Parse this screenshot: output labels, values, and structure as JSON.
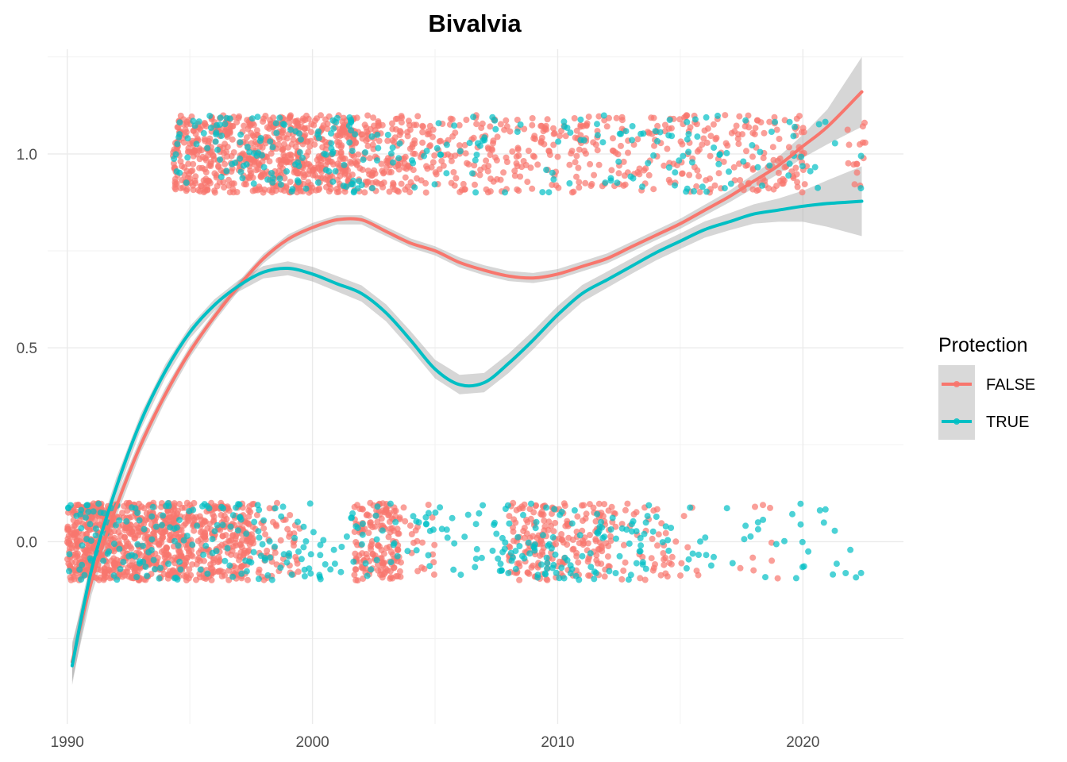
{
  "chart_data": {
    "type": "scatter",
    "title": "Bivalvia",
    "xlabel": "",
    "ylabel": "",
    "xlim": [
      1989.2,
      2024.1
    ],
    "ylim": [
      -0.47,
      1.27
    ],
    "x_ticks": [
      1990,
      2000,
      2010,
      2020
    ],
    "x_tick_labels": [
      "1990",
      "2000",
      "2010",
      "2020"
    ],
    "y_ticks": [
      0.0,
      0.5,
      1.0
    ],
    "y_tick_labels": [
      "0.0",
      "0.5",
      "1.0"
    ],
    "grid": true,
    "legend": {
      "title": "Protection",
      "placement": "right",
      "entries": [
        {
          "label": "FALSE",
          "color": "#F8766D"
        },
        {
          "label": "TRUE",
          "color": "#00BFC4"
        }
      ]
    },
    "points_note_values": "jittered binary outcome (0 or 1) per year; points at y≈0 and y≈1",
    "point_groups": [
      {
        "series": "FALSE",
        "y": 1,
        "x_ranges": [
          [
            1994.3,
            2001.9,
            700
          ],
          [
            2001.9,
            2004.0,
            120
          ],
          [
            2004.0,
            2010.0,
            180
          ],
          [
            2010.0,
            2020.2,
            260
          ],
          [
            2021.8,
            2022.6,
            15
          ]
        ]
      },
      {
        "series": "TRUE",
        "y": 1,
        "x_ranges": [
          [
            1994.3,
            2001.9,
            120
          ],
          [
            2001.9,
            2010.0,
            50
          ],
          [
            2010.0,
            2020.2,
            80
          ],
          [
            2020.2,
            2022.6,
            8
          ]
        ]
      },
      {
        "series": "FALSE",
        "y": 0,
        "x_ranges": [
          [
            1990.0,
            1994.8,
            700
          ],
          [
            1994.8,
            1997.5,
            260
          ],
          [
            1997.5,
            1999.5,
            60
          ],
          [
            2001.7,
            2003.6,
            160
          ],
          [
            2003.6,
            2005.0,
            20
          ],
          [
            2008.0,
            2012.0,
            200
          ],
          [
            2012.0,
            2014.5,
            50
          ],
          [
            2014.5,
            2019.5,
            20
          ]
        ]
      },
      {
        "series": "TRUE",
        "y": 0,
        "x_ranges": [
          [
            1990.0,
            1994.8,
            90
          ],
          [
            1994.8,
            2001.0,
            90
          ],
          [
            2001.0,
            2007.5,
            60
          ],
          [
            2007.5,
            2014.0,
            110
          ],
          [
            2014.0,
            2022.6,
            45
          ]
        ]
      }
    ],
    "series": [
      {
        "name": "FALSE",
        "color": "#F8766D",
        "smooth_x": [
          1990.2,
          1991,
          1992,
          1993,
          1994,
          1995,
          1996,
          1997,
          1998,
          1999,
          2000,
          2001,
          2002,
          2003,
          2004,
          2005,
          2006,
          2007,
          2008,
          2009,
          2010,
          2011,
          2012,
          2013,
          2014,
          2015,
          2016,
          2017,
          2018,
          2019,
          2020,
          2021,
          2022.4
        ],
        "smooth_y": [
          -0.31,
          -0.1,
          0.09,
          0.25,
          0.38,
          0.49,
          0.58,
          0.66,
          0.73,
          0.78,
          0.81,
          0.83,
          0.83,
          0.8,
          0.77,
          0.75,
          0.72,
          0.7,
          0.685,
          0.68,
          0.69,
          0.71,
          0.73,
          0.76,
          0.79,
          0.82,
          0.855,
          0.89,
          0.93,
          0.97,
          1.02,
          1.07,
          1.16
        ],
        "se": [
          0.05,
          0.035,
          0.025,
          0.02,
          0.017,
          0.015,
          0.013,
          0.012,
          0.012,
          0.012,
          0.012,
          0.012,
          0.012,
          0.012,
          0.012,
          0.012,
          0.013,
          0.013,
          0.013,
          0.013,
          0.013,
          0.013,
          0.013,
          0.013,
          0.013,
          0.013,
          0.014,
          0.015,
          0.018,
          0.022,
          0.03,
          0.045,
          0.09
        ]
      },
      {
        "name": "TRUE",
        "color": "#00BFC4",
        "smooth_x": [
          1990.2,
          1991,
          1992,
          1993,
          1994,
          1995,
          1996,
          1997,
          1998,
          1999,
          2000,
          2001,
          2002,
          2003,
          2004,
          2005,
          2006,
          2007,
          2008,
          2009,
          2010,
          2011,
          2012,
          2013,
          2014,
          2015,
          2016,
          2017,
          2018,
          2019,
          2020,
          2021,
          2022.4
        ],
        "smooth_y": [
          -0.32,
          -0.07,
          0.14,
          0.31,
          0.44,
          0.54,
          0.61,
          0.66,
          0.695,
          0.705,
          0.69,
          0.665,
          0.64,
          0.59,
          0.52,
          0.445,
          0.405,
          0.41,
          0.46,
          0.52,
          0.585,
          0.64,
          0.675,
          0.71,
          0.745,
          0.775,
          0.805,
          0.825,
          0.845,
          0.855,
          0.865,
          0.872,
          0.878
        ],
        "se": [
          0.05,
          0.035,
          0.025,
          0.02,
          0.018,
          0.016,
          0.015,
          0.015,
          0.016,
          0.018,
          0.019,
          0.02,
          0.021,
          0.022,
          0.023,
          0.024,
          0.025,
          0.025,
          0.025,
          0.024,
          0.023,
          0.022,
          0.021,
          0.02,
          0.02,
          0.02,
          0.021,
          0.022,
          0.025,
          0.03,
          0.04,
          0.06,
          0.09
        ]
      }
    ]
  }
}
